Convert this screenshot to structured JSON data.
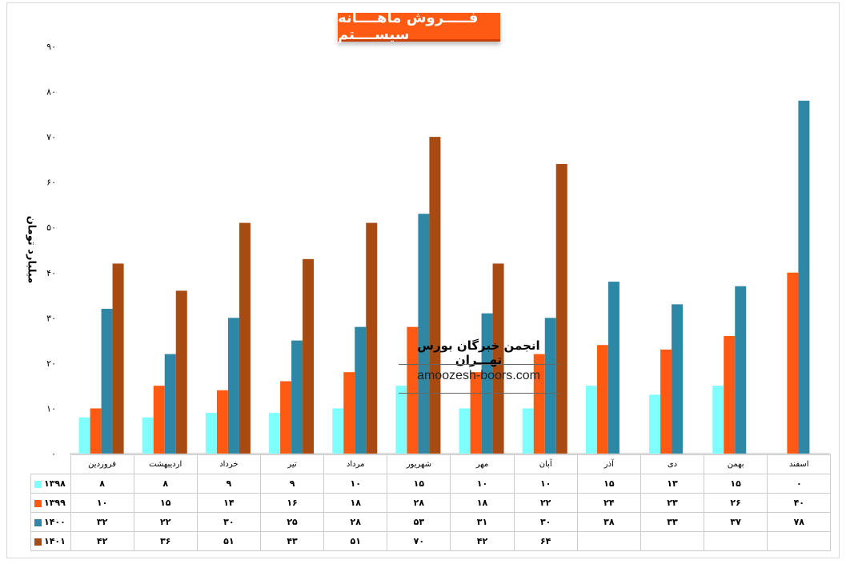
{
  "chart_data": {
    "type": "bar",
    "title": "فـــــروش ماهــــانه سیســــتم",
    "ylabel": "میلیارد تومان",
    "ylim": [
      0,
      90
    ],
    "yticks": [
      "۰",
      "۱۰",
      "۲۰",
      "۳۰",
      "۴۰",
      "۵۰",
      "۶۰",
      "۷۰",
      "۸۰",
      "۹۰"
    ],
    "tick_values": [
      0,
      10,
      20,
      30,
      40,
      50,
      60,
      70,
      80,
      90
    ],
    "categories": [
      "فروردین",
      "اردیبهشت",
      "خرداد",
      "تیر",
      "مرداد",
      "شهریور",
      "مهر",
      "آبان",
      "آذر",
      "دی",
      "بهمن",
      "اسفند"
    ],
    "series": [
      {
        "name": "۱۳۹۸",
        "color": "#80ffff",
        "values": [
          8,
          8,
          9,
          9,
          10,
          15,
          10,
          10,
          15,
          13,
          15,
          0
        ],
        "labels": [
          "۸",
          "۸",
          "۹",
          "۹",
          "۱۰",
          "۱۵",
          "۱۰",
          "۱۰",
          "۱۵",
          "۱۳",
          "۱۵",
          "۰"
        ]
      },
      {
        "name": "۱۳۹۹",
        "color": "#ff5a14",
        "values": [
          10,
          15,
          14,
          16,
          18,
          28,
          18,
          22,
          24,
          23,
          26,
          40
        ],
        "labels": [
          "۱۰",
          "۱۵",
          "۱۴",
          "۱۶",
          "۱۸",
          "۲۸",
          "۱۸",
          "۲۲",
          "۲۴",
          "۲۳",
          "۲۶",
          "۴۰"
        ]
      },
      {
        "name": "۱۴۰۰",
        "color": "#2e87a4",
        "values": [
          32,
          22,
          30,
          25,
          28,
          53,
          31,
          30,
          38,
          33,
          37,
          78
        ],
        "labels": [
          "۳۲",
          "۲۲",
          "۳۰",
          "۲۵",
          "۲۸",
          "۵۳",
          "۳۱",
          "۳۰",
          "۳۸",
          "۳۳",
          "۳۷",
          "۷۸"
        ]
      },
      {
        "name": "۱۴۰۱",
        "color": "#a84b12",
        "values": [
          42,
          36,
          51,
          43,
          51,
          70,
          42,
          64,
          null,
          null,
          null,
          null
        ],
        "labels": [
          "۴۲",
          "۳۶",
          "۵۱",
          "۴۳",
          "۵۱",
          "۷۰",
          "۴۲",
          "۶۴",
          "",
          "",
          "",
          ""
        ]
      }
    ],
    "grid": false,
    "legend": "data-table"
  },
  "watermark": {
    "title": "انجمن خبرگان بورس تهـــران",
    "url": "amoozesh-boors.com"
  }
}
